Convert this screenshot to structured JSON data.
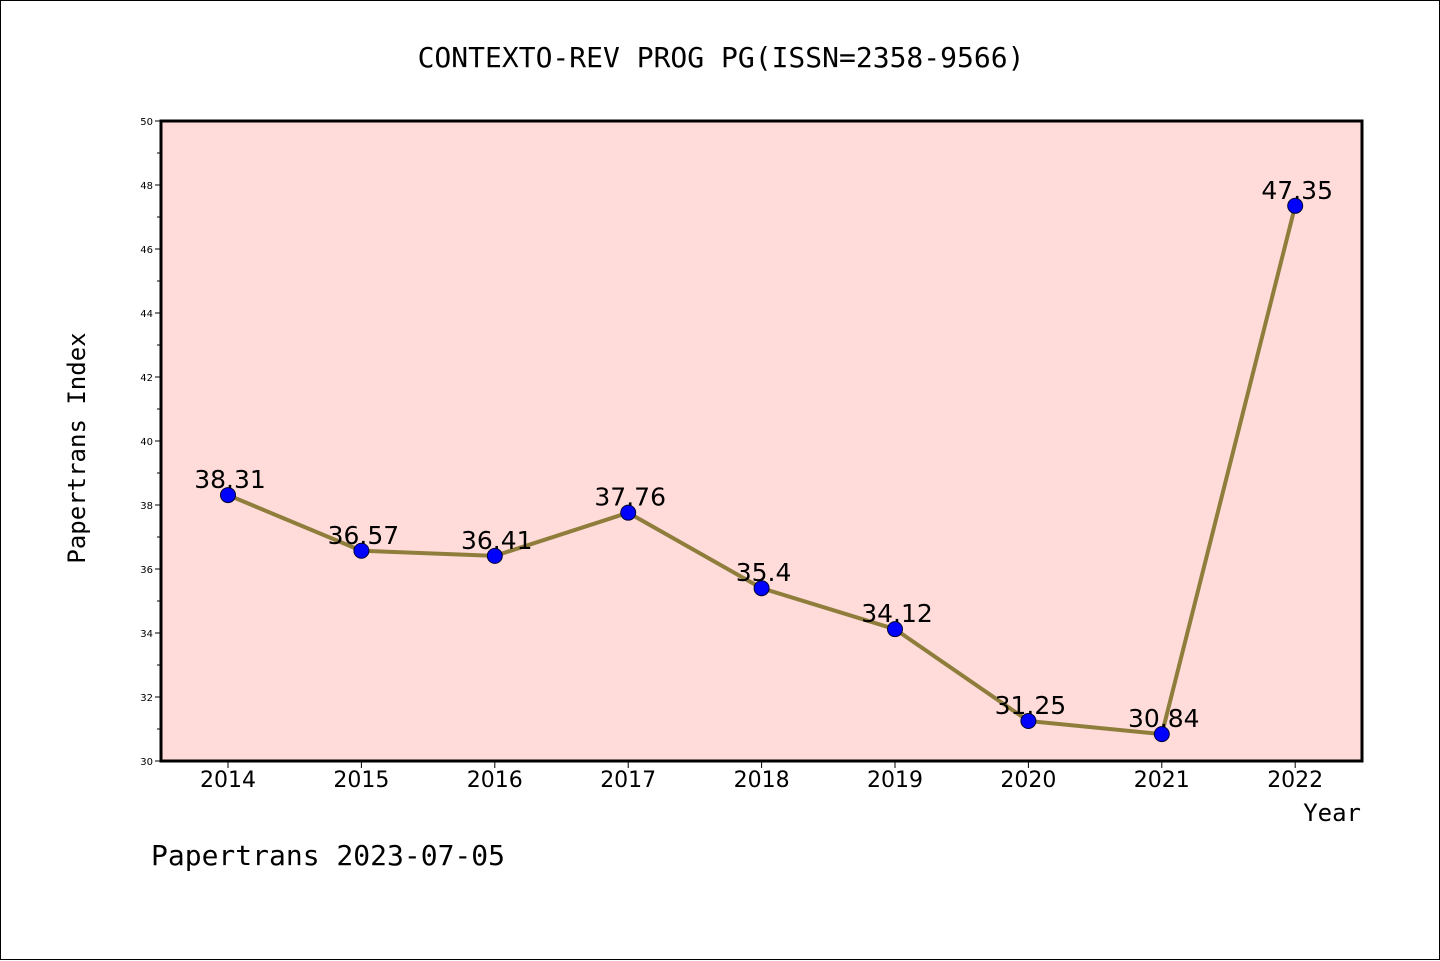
{
  "chart_data": {
    "type": "line",
    "title": "CONTEXTO-REV PROG PG(ISSN=2358-9566)",
    "xlabel": "Year",
    "ylabel": "Papertrans Index",
    "categories": [
      "2014",
      "2015",
      "2016",
      "2017",
      "2018",
      "2019",
      "2020",
      "2021",
      "2022"
    ],
    "values": [
      38.31,
      36.57,
      36.41,
      37.76,
      35.4,
      34.12,
      31.25,
      30.84,
      47.35
    ],
    "data_labels": [
      "38.31",
      "36.57",
      "36.41",
      "37.76",
      "35.4",
      "34.12",
      "31.25",
      "30.84",
      "47.35"
    ],
    "ylim": [
      30,
      50
    ],
    "yticks": [
      "30",
      "32",
      "34",
      "36",
      "38",
      "40",
      "42",
      "44",
      "46",
      "48",
      "50"
    ],
    "grid": false,
    "colors": {
      "plot_background": "#ffdcd9",
      "line": "#8f7d3b",
      "marker": "#0000ff"
    },
    "footer": "Papertrans 2023-07-05"
  }
}
